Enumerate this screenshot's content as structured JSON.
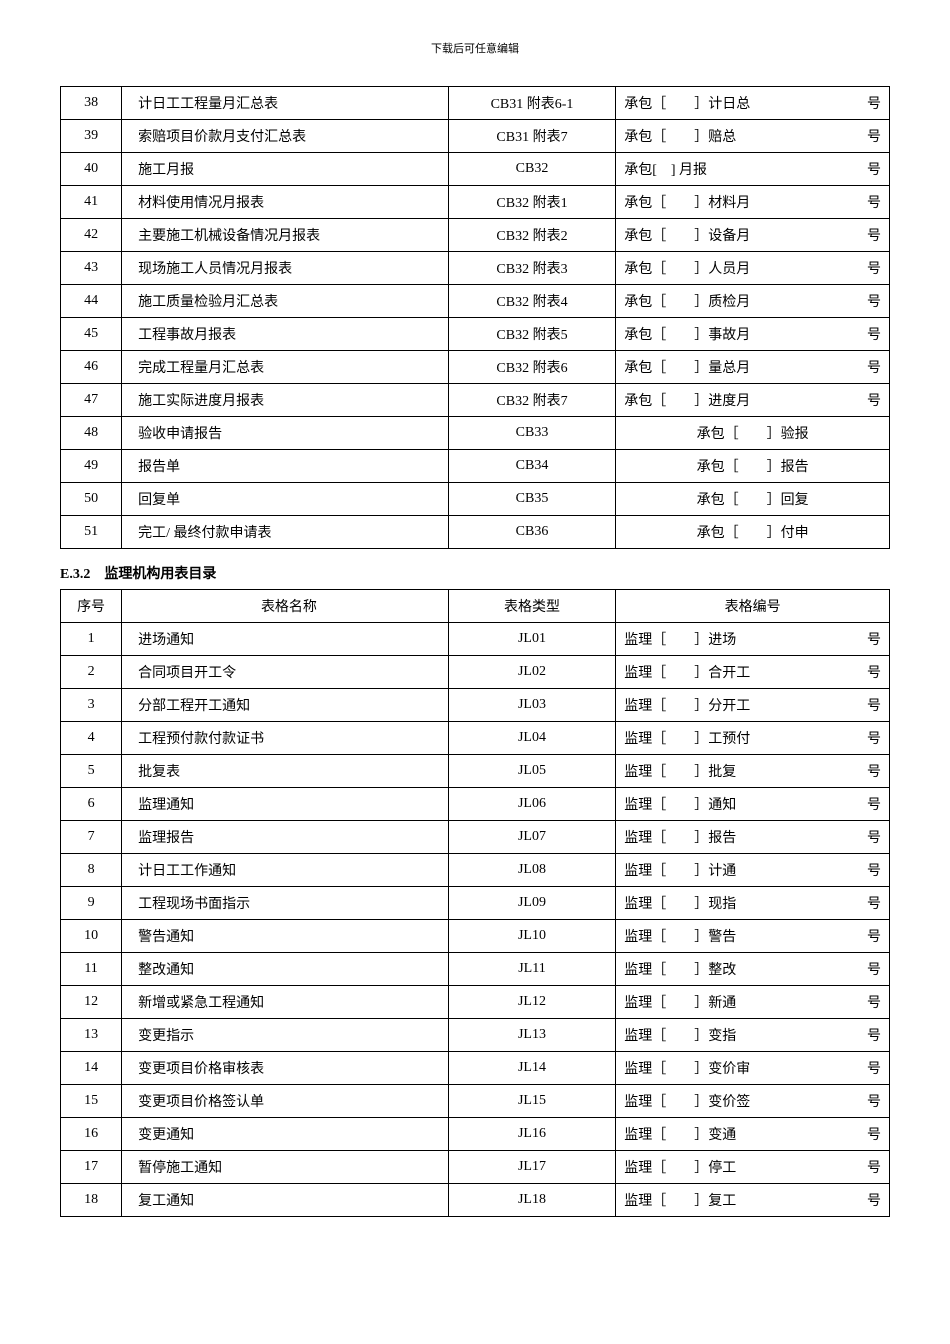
{
  "headerNote": "下载后可任意编辑",
  "table1": {
    "rows": [
      {
        "num": "38",
        "name": "计日工工程量月汇总表",
        "type": "CB31 附表6-1",
        "codeLeft": "承包［　　］计日总",
        "codeRight": "号"
      },
      {
        "num": "39",
        "name": "索赔项目价款月支付汇总表",
        "type": "CB31 附表7",
        "codeLeft": "承包［　　］赔总",
        "codeRight": "号"
      },
      {
        "num": "40",
        "name": "施工月报",
        "type": "CB32",
        "codeLeft": "承包[　] 月报",
        "codeRight": "号"
      },
      {
        "num": "41",
        "name": "材料使用情况月报表",
        "type": "CB32 附表1",
        "codeLeft": "承包［　　］材料月",
        "codeRight": "号"
      },
      {
        "num": "42",
        "name": "主要施工机械设备情况月报表",
        "type": "CB32 附表2",
        "codeLeft": "承包［　　］设备月",
        "codeRight": "号"
      },
      {
        "num": "43",
        "name": "现场施工人员情况月报表",
        "type": "CB32 附表3",
        "codeLeft": "承包［　　］人员月",
        "codeRight": "号"
      },
      {
        "num": "44",
        "name": "施工质量检验月汇总表",
        "type": "CB32 附表4",
        "codeLeft": "承包［　　］质检月",
        "codeRight": "号"
      },
      {
        "num": "45",
        "name": "工程事故月报表",
        "type": "CB32 附表5",
        "codeLeft": "承包［　　］事故月",
        "codeRight": "号"
      },
      {
        "num": "46",
        "name": "完成工程量月汇总表",
        "type": "CB32 附表6",
        "codeLeft": "承包［　　］量总月",
        "codeRight": "号"
      },
      {
        "num": "47",
        "name": "施工实际进度月报表",
        "type": "CB32 附表7",
        "codeLeft": "承包［　　］进度月",
        "codeRight": "号"
      },
      {
        "num": "48",
        "name": "验收申请报告",
        "type": "CB33",
        "codeCenter": "承包［　　］验报"
      },
      {
        "num": "49",
        "name": "报告单",
        "type": "CB34",
        "codeCenter": "承包［　　］报告"
      },
      {
        "num": "50",
        "name": "回复单",
        "type": "CB35",
        "codeCenter": "承包［　　］回复"
      },
      {
        "num": "51",
        "name": "完工/ 最终付款申请表",
        "type": "CB36",
        "codeCenter": "承包［　　］付申"
      }
    ]
  },
  "section2Title": "E.3.2　监理机构用表目录",
  "table2": {
    "headers": {
      "num": "序号",
      "name": "表格名称",
      "type": "表格类型",
      "code": "表格编号"
    },
    "rows": [
      {
        "num": "1",
        "name": "进场通知",
        "type": "JL01",
        "codeLeft": "监理［　　］进场",
        "codeRight": "号"
      },
      {
        "num": "2",
        "name": "合同项目开工令",
        "type": "JL02",
        "codeLeft": "监理［　　］合开工",
        "codeRight": "号"
      },
      {
        "num": "3",
        "name": "分部工程开工通知",
        "type": "JL03",
        "codeLeft": "监理［　　］分开工",
        "codeRight": "号"
      },
      {
        "num": "4",
        "name": "工程预付款付款证书",
        "type": "JL04",
        "codeLeft": "监理［　　］工预付",
        "codeRight": "号"
      },
      {
        "num": "5",
        "name": "批复表",
        "type": "JL05",
        "codeLeft": "监理［　　］批复",
        "codeRight": "号"
      },
      {
        "num": "6",
        "name": "监理通知",
        "type": "JL06",
        "codeLeft": "监理［　　］通知",
        "codeRight": "号"
      },
      {
        "num": "7",
        "name": "监理报告",
        "type": "JL07",
        "codeLeft": "监理［　　］报告",
        "codeRight": "号"
      },
      {
        "num": "8",
        "name": "计日工工作通知",
        "type": "JL08",
        "codeLeft": "监理［　　］计通",
        "codeRight": "号"
      },
      {
        "num": "9",
        "name": "工程现场书面指示",
        "type": "JL09",
        "codeLeft": "监理［　　］现指",
        "codeRight": "号"
      },
      {
        "num": "10",
        "name": "警告通知",
        "type": "JL10",
        "codeLeft": "监理［　　］警告",
        "codeRight": "号"
      },
      {
        "num": "11",
        "name": "整改通知",
        "type": "JL11",
        "codeLeft": "监理［　　］整改",
        "codeRight": "号"
      },
      {
        "num": "12",
        "name": "新增或紧急工程通知",
        "type": "JL12",
        "codeLeft": "监理［　　］新通",
        "codeRight": "号"
      },
      {
        "num": "13",
        "name": "变更指示",
        "type": "JL13",
        "codeLeft": "监理［　　］变指",
        "codeRight": "号"
      },
      {
        "num": "14",
        "name": "变更项目价格审核表",
        "type": "JL14",
        "codeLeft": "监理［　　］变价审",
        "codeRight": "号"
      },
      {
        "num": "15",
        "name": "变更项目价格签认单",
        "type": "JL15",
        "codeLeft": "监理［　　］变价签",
        "codeRight": "号"
      },
      {
        "num": "16",
        "name": "变更通知",
        "type": "JL16",
        "codeLeft": "监理［　　］变通",
        "codeRight": "号"
      },
      {
        "num": "17",
        "name": "暂停施工通知",
        "type": "JL17",
        "codeLeft": "监理［　　］停工",
        "codeRight": "号"
      },
      {
        "num": "18",
        "name": "复工通知",
        "type": "JL18",
        "codeLeft": "监理［　　］复工",
        "codeRight": "号"
      }
    ]
  }
}
